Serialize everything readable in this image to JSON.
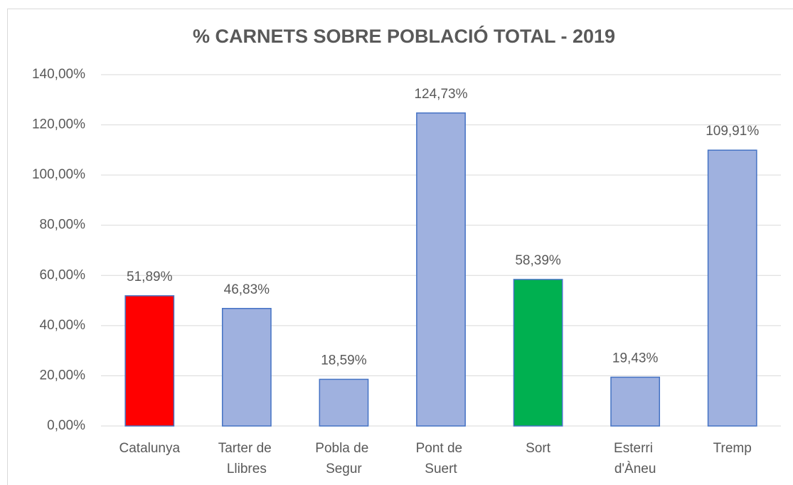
{
  "chart_data": {
    "type": "bar",
    "title": "% CARNETS SOBRE POBLACIÓ TOTAL - 2019",
    "categories": [
      "Catalunya",
      "Tarter de Llibres",
      "Pobla de Segur",
      "Pont de Suert",
      "Sort",
      "Esterri d'Àneu",
      "Tremp"
    ],
    "values": [
      51.89,
      46.83,
      18.59,
      124.73,
      58.39,
      19.43,
      109.91
    ],
    "value_labels": [
      "51,89%",
      "46,83%",
      "18,59%",
      "124,73%",
      "58,39%",
      "19,43%",
      "109,91%"
    ],
    "colors": [
      "#ff0000",
      "#9fb1df",
      "#9fb1df",
      "#9fb1df",
      "#00b050",
      "#9fb1df",
      "#9fb1df"
    ],
    "ylim": [
      0,
      140
    ],
    "yticks": [
      {
        "value": 0,
        "label": "0,00%"
      },
      {
        "value": 20,
        "label": "20,00%"
      },
      {
        "value": 40,
        "label": "40,00%"
      },
      {
        "value": 60,
        "label": "60,00%"
      },
      {
        "value": 80,
        "label": "80,00%"
      },
      {
        "value": 100,
        "label": "100,00%"
      },
      {
        "value": 120,
        "label": "120,00%"
      },
      {
        "value": 140,
        "label": "140,00%"
      }
    ],
    "grid": true
  }
}
